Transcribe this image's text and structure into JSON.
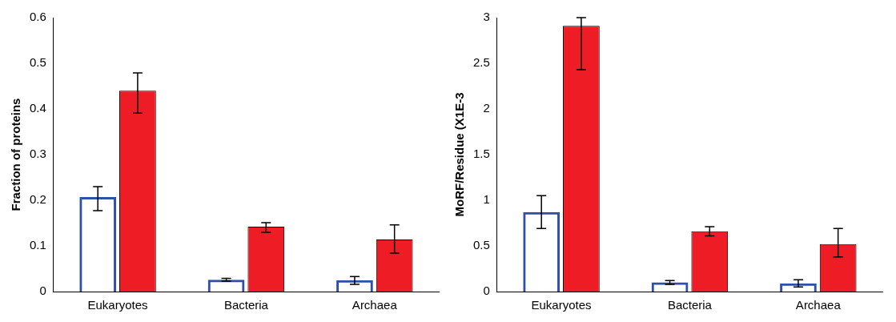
{
  "chart_data": [
    {
      "type": "bar",
      "ylabel": "Fraction of proteins",
      "categories": [
        "Eukaryotes",
        "Bacteria",
        "Archaea"
      ],
      "ylim": [
        0,
        0.6
      ],
      "yticks": [
        0,
        0.1,
        0.2,
        0.3,
        0.4,
        0.5,
        0.6
      ],
      "grid": false,
      "series": [
        {
          "color": "#2f4fa8",
          "values": [
            0.207,
            0.026,
            0.025
          ],
          "errors": [
            [
              0.177,
              0.23
            ],
            [
              0.023,
              0.029
            ],
            [
              0.016,
              0.033
            ]
          ]
        },
        {
          "color": "#ee1c24",
          "values": [
            0.44,
            0.142,
            0.114
          ],
          "errors": [
            [
              0.391,
              0.479
            ],
            [
              0.13,
              0.151
            ],
            [
              0.084,
              0.146
            ]
          ]
        }
      ]
    },
    {
      "type": "bar",
      "ylabel": "MoRF/Residue (X1E-3",
      "categories": [
        "Eukaryotes",
        "Bacteria",
        "Archaea"
      ],
      "ylim": [
        0,
        3
      ],
      "yticks": [
        0,
        0.5,
        1,
        1.5,
        2,
        2.5,
        3
      ],
      "grid": false,
      "series": [
        {
          "color": "#2f4fa8",
          "values": [
            0.87,
            0.1,
            0.09
          ],
          "errors": [
            [
              0.69,
              1.05
            ],
            [
              0.08,
              0.12
            ],
            [
              0.05,
              0.13
            ]
          ]
        },
        {
          "color": "#ee1c24",
          "values": [
            2.91,
            0.66,
            0.52
          ],
          "errors": [
            [
              2.43,
              3.0
            ],
            [
              0.61,
              0.71
            ],
            [
              0.38,
              0.69
            ]
          ]
        }
      ]
    }
  ]
}
